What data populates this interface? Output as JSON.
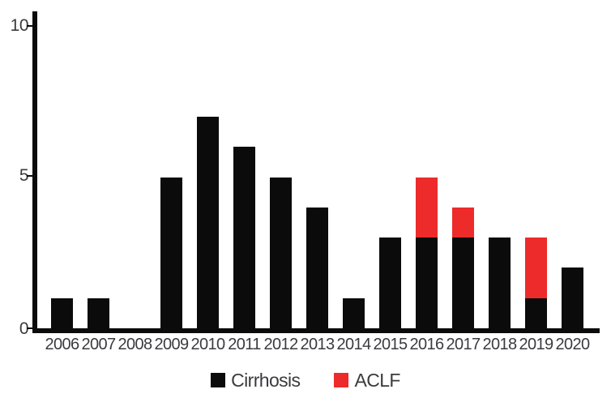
{
  "chart_data": {
    "type": "bar",
    "stacked": true,
    "title": "",
    "xlabel": "",
    "ylabel": "",
    "categories": [
      "2006",
      "2007",
      "2008",
      "2009",
      "2010",
      "2011",
      "2012",
      "2013",
      "2014",
      "2015",
      "2016",
      "2017",
      "2018",
      "2019",
      "2020"
    ],
    "series": [
      {
        "name": "Cirrhosis",
        "color": "#0c0b0c",
        "values": [
          1,
          1,
          0,
          5,
          7,
          6,
          5,
          4,
          1,
          3,
          3,
          3,
          3,
          1,
          2
        ]
      },
      {
        "name": "ACLF",
        "color": "#ED2B2A",
        "values": [
          0,
          0,
          0,
          0,
          0,
          0,
          0,
          0,
          0,
          0,
          2,
          1,
          0,
          2,
          0
        ]
      }
    ],
    "ylim": [
      0,
      10
    ],
    "yticks": [
      10,
      5,
      0
    ],
    "grid": false,
    "legend_position": "bottom",
    "axis_color": "#0c0b0c",
    "tick_label_color": "#3b3a3e"
  }
}
